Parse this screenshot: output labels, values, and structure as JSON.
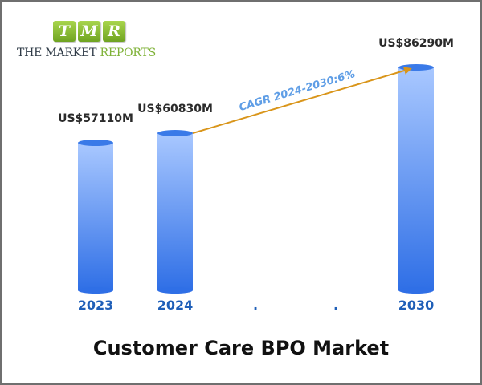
{
  "logo": {
    "letters": [
      "T",
      "M",
      "R"
    ],
    "text_part1": "THE MARKET ",
    "text_part2": "REPORTS"
  },
  "colors": {
    "bar_top": "#a9c8ff",
    "bar_bottom": "#2f6fe6",
    "bar_cap": "#3a7ae8",
    "arrow": "#d9951a",
    "year_label": "#1f5fb8",
    "cagr_text": "#5f9ee6",
    "logo_green": "#7fb238"
  },
  "chart_data": {
    "type": "bar",
    "title": "Customer Care BPO Market",
    "categories": [
      "2023",
      "2024",
      ".",
      ".",
      "2030"
    ],
    "values": [
      57110,
      60830,
      null,
      null,
      86290
    ],
    "value_labels": [
      "US$57110M",
      "US$60830M",
      "",
      "",
      "US$86290M"
    ],
    "unit": "US$ Million",
    "annotation": {
      "text": "CAGR 2024-2030:6%",
      "from_category": "2024",
      "to_category": "2030"
    },
    "grid": false,
    "legend": "none"
  }
}
